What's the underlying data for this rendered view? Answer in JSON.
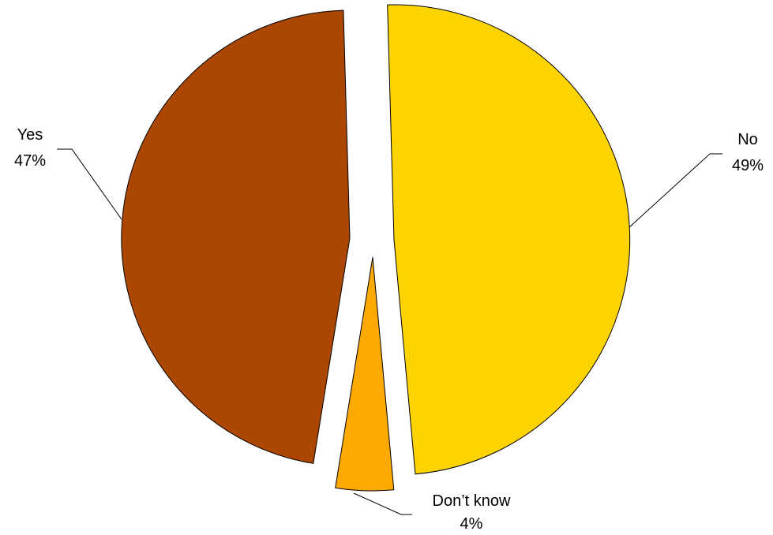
{
  "chart_data": {
    "type": "pie",
    "title": "",
    "exploded": true,
    "slices": [
      {
        "label": "No",
        "value": 49,
        "value_label": "49%",
        "color": "#FDD300"
      },
      {
        "label": "Don’t know",
        "value": 4,
        "value_label": "4%",
        "color": "#FCAA02"
      },
      {
        "label": "Yes",
        "value": 47,
        "value_label": "47%",
        "color": "#AB4700"
      }
    ]
  }
}
